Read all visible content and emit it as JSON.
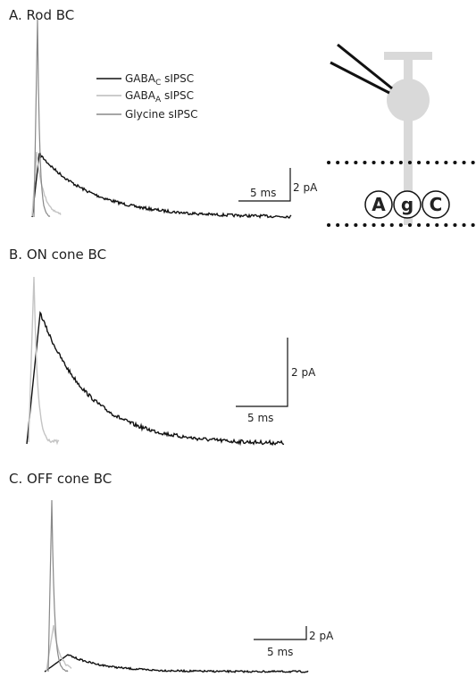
{
  "panels": [
    {
      "title": "A. Rod BC",
      "scale_time": "5 ms",
      "scale_current": "2 pA"
    },
    {
      "title": "B. ON cone BC",
      "scale_time": "5 ms",
      "scale_current": "2 pA"
    },
    {
      "title": "C. OFF cone BC",
      "scale_time": "5 ms",
      "scale_current": "2 pA"
    }
  ],
  "legend": [
    {
      "base": "GABA",
      "sub": "C",
      "rest": " sIPSC"
    },
    {
      "base": "GABA",
      "sub": "A",
      "rest": " sIPSC"
    },
    {
      "base": "Glycine sIPSC"
    }
  ],
  "cell_diagram": {
    "receptors": [
      "A",
      "g",
      "C"
    ]
  }
}
